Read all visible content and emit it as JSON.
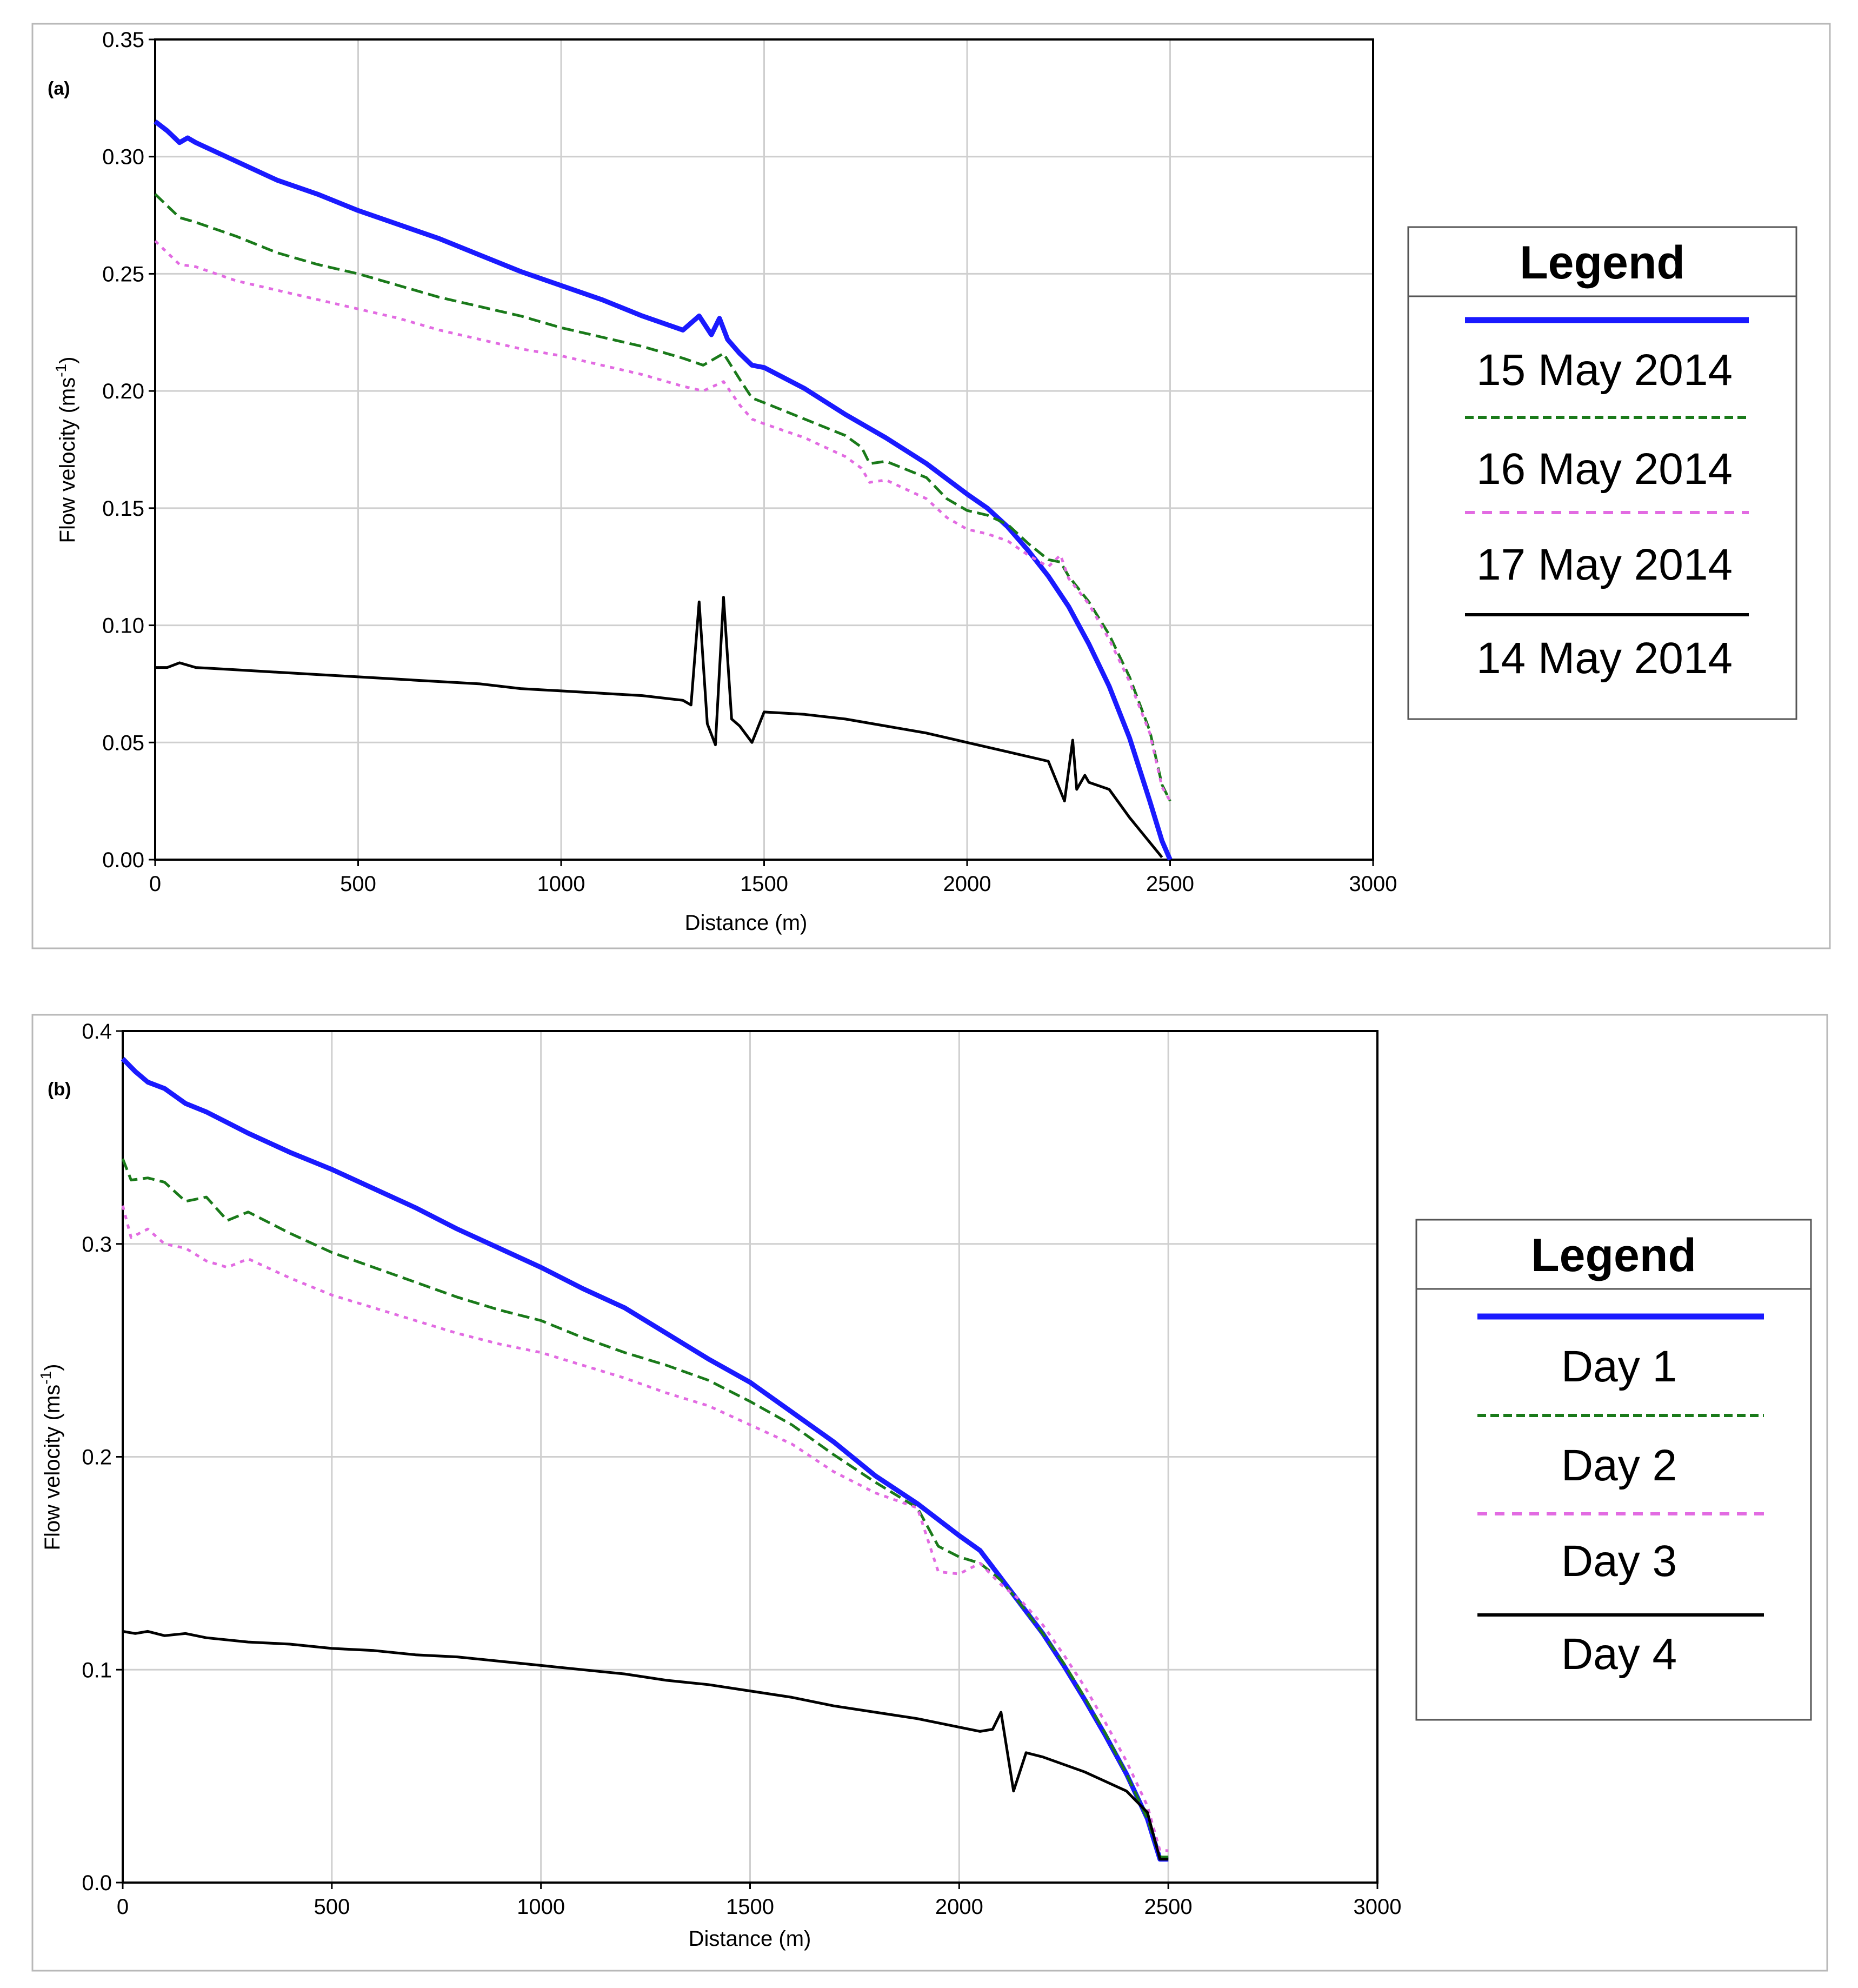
{
  "chart_data": [
    {
      "type": "line",
      "panel_label": "(a)",
      "xlabel": "Distance (m)",
      "ylabel_main": "Flow velocity (ms",
      "ylabel_sup": "-1",
      "ylabel_close": ")",
      "xlim": [
        0,
        3000
      ],
      "ylim": [
        0,
        0.35
      ],
      "xticks": [
        "0",
        "500",
        "1000",
        "1500",
        "2000",
        "2500",
        "3000"
      ],
      "yticks": [
        "0.00",
        "0.05",
        "0.10",
        "0.15",
        "0.20",
        "0.25",
        "0.30",
        "0.35"
      ],
      "grid": true,
      "legend_title": "Legend",
      "legend_position": "right",
      "series": [
        {
          "name": "15 May 2014",
          "color": "#1a1aff",
          "style": "solid",
          "x": [
            0,
            30,
            60,
            80,
            100,
            200,
            300,
            400,
            500,
            600,
            700,
            800,
            900,
            1000,
            1100,
            1200,
            1300,
            1340,
            1370,
            1390,
            1410,
            1440,
            1470,
            1500,
            1600,
            1700,
            1800,
            1900,
            2000,
            2050,
            2100,
            2150,
            2200,
            2250,
            2300,
            2350,
            2400,
            2450,
            2480,
            2500
          ],
          "y": [
            0.315,
            0.311,
            0.306,
            0.308,
            0.306,
            0.298,
            0.29,
            0.284,
            0.277,
            0.271,
            0.265,
            0.258,
            0.251,
            0.245,
            0.239,
            0.232,
            0.226,
            0.232,
            0.224,
            0.231,
            0.222,
            0.216,
            0.211,
            0.21,
            0.201,
            0.19,
            0.18,
            0.169,
            0.156,
            0.15,
            0.142,
            0.132,
            0.121,
            0.108,
            0.092,
            0.074,
            0.052,
            0.025,
            0.008,
            0.0
          ]
        },
        {
          "name": "16 May 2014",
          "color": "#1a7a1a",
          "style": "dashed",
          "x": [
            0,
            30,
            60,
            100,
            200,
            300,
            400,
            500,
            600,
            700,
            800,
            900,
            1000,
            1100,
            1200,
            1300,
            1350,
            1400,
            1440,
            1470,
            1500,
            1600,
            1700,
            1740,
            1760,
            1800,
            1900,
            1950,
            2000,
            2050,
            2100,
            2150,
            2200,
            2230,
            2250,
            2300,
            2350,
            2400,
            2450,
            2480,
            2500
          ],
          "y": [
            0.284,
            0.279,
            0.274,
            0.272,
            0.266,
            0.259,
            0.254,
            0.25,
            0.245,
            0.24,
            0.236,
            0.232,
            0.227,
            0.223,
            0.219,
            0.214,
            0.211,
            0.216,
            0.205,
            0.197,
            0.195,
            0.188,
            0.181,
            0.176,
            0.169,
            0.17,
            0.163,
            0.154,
            0.149,
            0.147,
            0.143,
            0.135,
            0.128,
            0.127,
            0.121,
            0.11,
            0.096,
            0.078,
            0.055,
            0.032,
            0.025
          ]
        },
        {
          "name": "17 May 2014",
          "color": "#e26be2",
          "style": "dotted",
          "x": [
            0,
            30,
            60,
            100,
            200,
            300,
            400,
            500,
            600,
            700,
            800,
            900,
            1000,
            1100,
            1200,
            1300,
            1350,
            1400,
            1440,
            1470,
            1500,
            1600,
            1700,
            1740,
            1760,
            1800,
            1900,
            1950,
            2000,
            2050,
            2100,
            2150,
            2200,
            2230,
            2250,
            2300,
            2350,
            2400,
            2450,
            2480,
            2500
          ],
          "y": [
            0.264,
            0.259,
            0.254,
            0.253,
            0.247,
            0.243,
            0.239,
            0.235,
            0.231,
            0.226,
            0.222,
            0.218,
            0.215,
            0.211,
            0.207,
            0.202,
            0.2,
            0.204,
            0.194,
            0.188,
            0.186,
            0.18,
            0.172,
            0.167,
            0.161,
            0.162,
            0.154,
            0.146,
            0.141,
            0.139,
            0.136,
            0.13,
            0.125,
            0.13,
            0.12,
            0.109,
            0.094,
            0.076,
            0.054,
            0.031,
            0.025
          ]
        },
        {
          "name": "14 May 2014",
          "color": "#000000",
          "style": "solid",
          "x": [
            0,
            30,
            60,
            100,
            200,
            300,
            400,
            500,
            600,
            700,
            800,
            900,
            1000,
            1100,
            1200,
            1300,
            1320,
            1340,
            1360,
            1380,
            1400,
            1420,
            1440,
            1470,
            1500,
            1600,
            1700,
            1800,
            1900,
            2000,
            2100,
            2200,
            2240,
            2260,
            2270,
            2290,
            2300,
            2350,
            2400,
            2480
          ],
          "y": [
            0.082,
            0.082,
            0.084,
            0.082,
            0.081,
            0.08,
            0.079,
            0.078,
            0.077,
            0.076,
            0.075,
            0.073,
            0.072,
            0.071,
            0.07,
            0.068,
            0.066,
            0.11,
            0.058,
            0.049,
            0.112,
            0.06,
            0.057,
            0.05,
            0.063,
            0.062,
            0.06,
            0.057,
            0.054,
            0.05,
            0.046,
            0.042,
            0.025,
            0.051,
            0.03,
            0.036,
            0.033,
            0.03,
            0.018,
            0.001
          ]
        }
      ]
    },
    {
      "type": "line",
      "panel_label": "(b)",
      "xlabel": "Distance (m)",
      "ylabel_main": "Flow velocity (ms",
      "ylabel_sup": "-1",
      "ylabel_close": ")",
      "xlim": [
        0,
        3000
      ],
      "ylim": [
        0,
        0.4
      ],
      "xticks": [
        "0",
        "500",
        "1000",
        "1500",
        "2000",
        "2500",
        "3000"
      ],
      "yticks": [
        "0.0",
        "0.1",
        "0.2",
        "0.3",
        "0.4"
      ],
      "grid": true,
      "legend_title": "Legend",
      "legend_position": "right",
      "series": [
        {
          "name": "Day 1",
          "color": "#1a1aff",
          "style": "solid",
          "x": [
            0,
            30,
            60,
            100,
            150,
            200,
            250,
            300,
            400,
            500,
            600,
            700,
            800,
            900,
            1000,
            1100,
            1200,
            1300,
            1400,
            1500,
            1600,
            1700,
            1800,
            1900,
            2000,
            2050,
            2100,
            2150,
            2200,
            2250,
            2300,
            2350,
            2400,
            2450,
            2480,
            2500
          ],
          "y": [
            0.387,
            0.381,
            0.376,
            0.373,
            0.366,
            0.362,
            0.357,
            0.352,
            0.343,
            0.335,
            0.326,
            0.317,
            0.307,
            0.298,
            0.289,
            0.279,
            0.27,
            0.258,
            0.246,
            0.235,
            0.221,
            0.207,
            0.191,
            0.178,
            0.163,
            0.156,
            0.143,
            0.13,
            0.117,
            0.102,
            0.086,
            0.069,
            0.051,
            0.03,
            0.011,
            0.011
          ]
        },
        {
          "name": "Day 2",
          "color": "#1a7a1a",
          "style": "dashed",
          "x": [
            0,
            20,
            60,
            100,
            150,
            200,
            250,
            300,
            400,
            500,
            600,
            700,
            800,
            900,
            1000,
            1100,
            1200,
            1300,
            1400,
            1500,
            1600,
            1700,
            1800,
            1900,
            1950,
            2000,
            2050,
            2100,
            2150,
            2200,
            2250,
            2300,
            2350,
            2400,
            2450,
            2480,
            2500
          ],
          "y": [
            0.34,
            0.33,
            0.331,
            0.329,
            0.32,
            0.322,
            0.311,
            0.315,
            0.305,
            0.296,
            0.289,
            0.282,
            0.275,
            0.269,
            0.264,
            0.256,
            0.249,
            0.243,
            0.236,
            0.226,
            0.215,
            0.201,
            0.188,
            0.176,
            0.158,
            0.153,
            0.15,
            0.142,
            0.13,
            0.117,
            0.103,
            0.087,
            0.07,
            0.051,
            0.03,
            0.012,
            0.012
          ]
        },
        {
          "name": "Day 3",
          "color": "#e26be2",
          "style": "dotted",
          "x": [
            0,
            20,
            60,
            100,
            150,
            200,
            250,
            300,
            400,
            500,
            600,
            700,
            800,
            900,
            1000,
            1100,
            1200,
            1300,
            1400,
            1500,
            1600,
            1700,
            1800,
            1900,
            1950,
            2000,
            2050,
            2100,
            2150,
            2200,
            2250,
            2300,
            2350,
            2400,
            2450,
            2480,
            2500
          ],
          "y": [
            0.318,
            0.303,
            0.307,
            0.3,
            0.298,
            0.292,
            0.289,
            0.293,
            0.284,
            0.276,
            0.27,
            0.264,
            0.258,
            0.253,
            0.249,
            0.243,
            0.237,
            0.23,
            0.224,
            0.215,
            0.206,
            0.193,
            0.183,
            0.176,
            0.146,
            0.145,
            0.15,
            0.14,
            0.132,
            0.121,
            0.107,
            0.092,
            0.075,
            0.057,
            0.036,
            0.015,
            0.015
          ]
        },
        {
          "name": "Day 4",
          "color": "#000000",
          "style": "solid",
          "x": [
            0,
            30,
            60,
            100,
            150,
            200,
            300,
            400,
            500,
            600,
            700,
            800,
            900,
            1000,
            1100,
            1200,
            1300,
            1400,
            1500,
            1600,
            1700,
            1800,
            1900,
            2000,
            2050,
            2080,
            2100,
            2130,
            2160,
            2200,
            2300,
            2400,
            2450,
            2480,
            2500
          ],
          "y": [
            0.118,
            0.117,
            0.118,
            0.116,
            0.117,
            0.115,
            0.113,
            0.112,
            0.11,
            0.109,
            0.107,
            0.106,
            0.104,
            0.102,
            0.1,
            0.098,
            0.095,
            0.093,
            0.09,
            0.087,
            0.083,
            0.08,
            0.077,
            0.073,
            0.071,
            0.072,
            0.08,
            0.043,
            0.061,
            0.059,
            0.052,
            0.043,
            0.033,
            0.011,
            0.011
          ]
        }
      ]
    }
  ]
}
